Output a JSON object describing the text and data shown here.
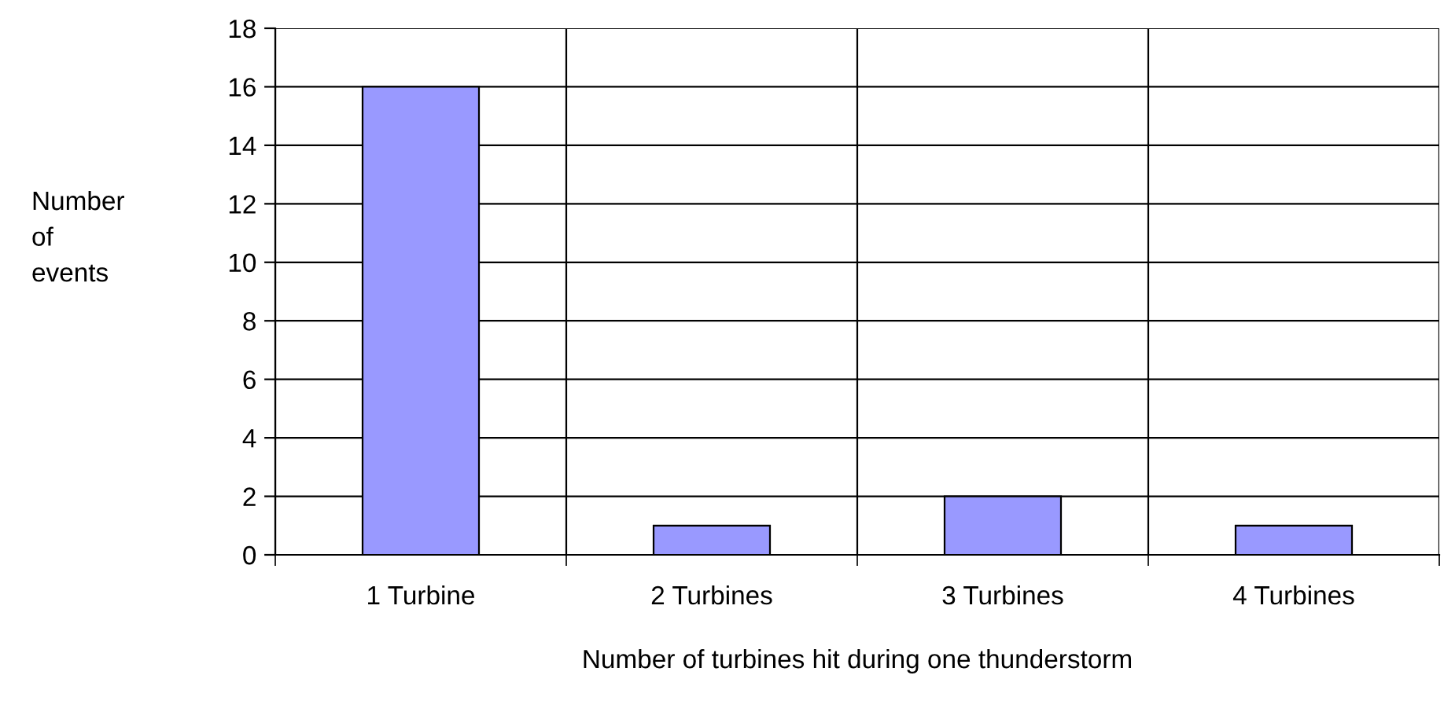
{
  "chart_data": {
    "type": "bar",
    "categories": [
      "1 Turbine",
      "2 Turbines",
      "3 Turbines",
      "4 Turbines"
    ],
    "values": [
      16,
      1,
      2,
      1
    ],
    "color": "#9999ff",
    "xlabel": "Number of turbines hit during one thunderstorm",
    "ylabel": "Number\nof\nevents",
    "ylim": [
      0,
      18
    ],
    "yticks": [
      0,
      2,
      4,
      6,
      8,
      10,
      12,
      14,
      16,
      18
    ],
    "grid": true,
    "legend": false
  }
}
